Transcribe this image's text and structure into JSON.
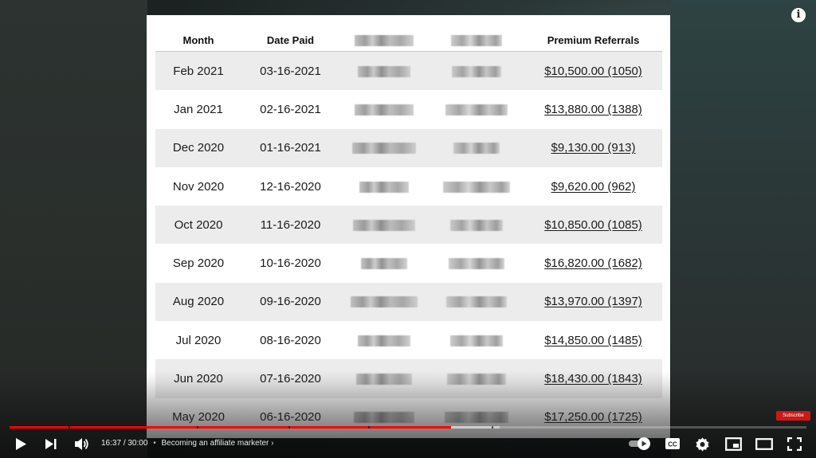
{
  "table": {
    "headers": [
      "Month",
      "Date Paid",
      "",
      "",
      "Premium Referrals"
    ],
    "rows": [
      {
        "month": "Feb 2021",
        "date": "03-16-2021",
        "amount": "$10,500.00 (1050)"
      },
      {
        "month": "Jan 2021",
        "date": "02-16-2021",
        "amount": "$13,880.00 (1388)"
      },
      {
        "month": "Dec 2020",
        "date": "01-16-2021",
        "amount": "$9,130.00 (913)"
      },
      {
        "month": "Nov 2020",
        "date": "12-16-2020",
        "amount": "$9,620.00 (962)"
      },
      {
        "month": "Oct 2020",
        "date": "11-16-2020",
        "amount": "$10,850.00 (1085)"
      },
      {
        "month": "Sep 2020",
        "date": "10-16-2020",
        "amount": "$16,820.00 (1682)"
      },
      {
        "month": "Aug 2020",
        "date": "09-16-2020",
        "amount": "$13,970.00 (1397)"
      },
      {
        "month": "Jul 2020",
        "date": "08-16-2020",
        "amount": "$14,850.00 (1485)"
      },
      {
        "month": "Jun 2020",
        "date": "07-16-2020",
        "amount": "$18,430.00 (1843)"
      },
      {
        "month": "May 2020",
        "date": "06-16-2020",
        "amount": "$17,250.00 (1725)"
      }
    ]
  },
  "player": {
    "current_time": "16:37",
    "duration": "30:00",
    "chapter_title": "Becoming an affiliate marketer",
    "progress": 0.554,
    "subscribe_label": "Subscribe",
    "info_icon": "info-icon",
    "accent_color": "#ff0000"
  }
}
